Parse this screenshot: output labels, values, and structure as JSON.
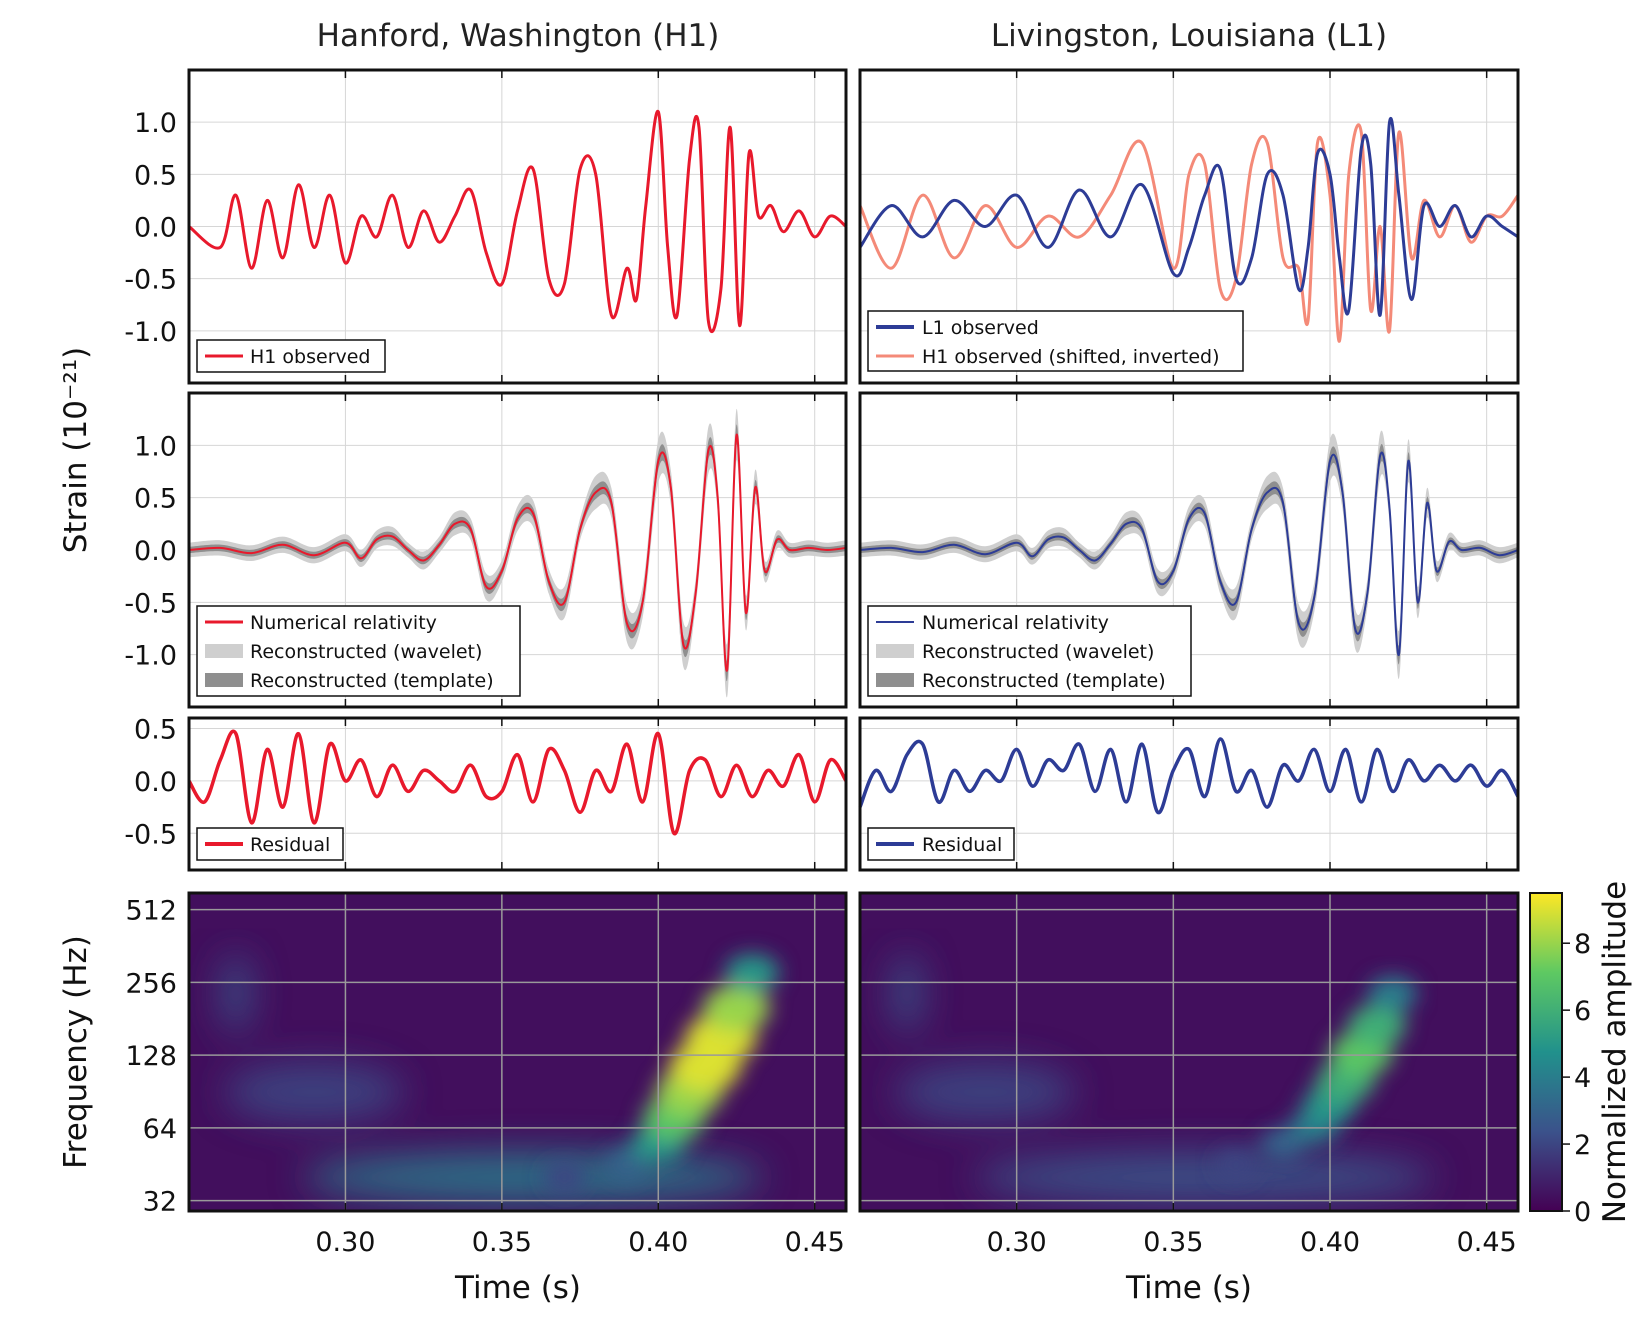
{
  "chart_data": [
    {
      "id": "h1-observed",
      "type": "line",
      "title": "Hanford, Washington (H1)",
      "ylabel": "Strain (10⁻²¹)",
      "xlim": [
        0.25,
        0.46
      ],
      "ylim": [
        -1.5,
        1.5
      ],
      "ytick_labels": [
        "1.0",
        "0.5",
        "0.0",
        "-0.5",
        "-1.0"
      ],
      "yticks": [
        1.0,
        0.5,
        0.0,
        -0.5,
        -1.0
      ],
      "legend": "bottom-left",
      "series": [
        {
          "name": "H1 observed",
          "color": "#e8192c",
          "x": [
            0.25,
            0.26,
            0.265,
            0.27,
            0.275,
            0.28,
            0.285,
            0.29,
            0.295,
            0.3,
            0.305,
            0.31,
            0.315,
            0.32,
            0.325,
            0.33,
            0.335,
            0.34,
            0.345,
            0.35,
            0.355,
            0.36,
            0.365,
            0.37,
            0.375,
            0.38,
            0.385,
            0.39,
            0.393,
            0.396,
            0.4,
            0.403,
            0.406,
            0.41,
            0.413,
            0.416,
            0.42,
            0.423,
            0.426,
            0.429,
            0.432,
            0.436,
            0.44,
            0.445,
            0.45,
            0.455,
            0.46
          ],
          "y": [
            0.0,
            -0.2,
            0.3,
            -0.4,
            0.25,
            -0.3,
            0.4,
            -0.2,
            0.3,
            -0.35,
            0.1,
            -0.1,
            0.3,
            -0.2,
            0.15,
            -0.15,
            0.1,
            0.35,
            -0.25,
            -0.55,
            0.15,
            0.55,
            -0.5,
            -0.55,
            0.55,
            0.5,
            -0.85,
            -0.4,
            -0.7,
            0.2,
            1.1,
            -0.2,
            -0.85,
            0.65,
            0.95,
            -0.9,
            -0.6,
            0.95,
            -0.95,
            0.7,
            0.1,
            0.2,
            -0.05,
            0.15,
            -0.1,
            0.1,
            0.0
          ]
        }
      ]
    },
    {
      "id": "l1-observed",
      "type": "line",
      "title": "Livingston, Louisiana (L1)",
      "xlim": [
        0.25,
        0.46
      ],
      "ylim": [
        -1.5,
        1.5
      ],
      "legend": "bottom-left",
      "series": [
        {
          "name": "L1 observed",
          "color": "#2d3c96",
          "x": [
            0.25,
            0.26,
            0.27,
            0.28,
            0.29,
            0.3,
            0.31,
            0.32,
            0.33,
            0.34,
            0.35,
            0.355,
            0.36,
            0.365,
            0.37,
            0.375,
            0.38,
            0.385,
            0.39,
            0.393,
            0.396,
            0.4,
            0.403,
            0.406,
            0.41,
            0.413,
            0.416,
            0.419,
            0.422,
            0.426,
            0.43,
            0.435,
            0.44,
            0.445,
            0.45,
            0.455,
            0.46
          ],
          "y": [
            -0.2,
            0.2,
            -0.1,
            0.25,
            0.0,
            0.3,
            -0.2,
            0.35,
            -0.1,
            0.4,
            -0.45,
            -0.2,
            0.3,
            0.55,
            -0.5,
            -0.3,
            0.5,
            0.3,
            -0.6,
            -0.2,
            0.7,
            0.5,
            -0.3,
            -0.8,
            0.75,
            0.6,
            -0.85,
            1.0,
            0.3,
            -0.7,
            0.2,
            0.0,
            0.2,
            -0.1,
            0.1,
            0.0,
            -0.1
          ]
        },
        {
          "name": "H1 observed (shifted, inverted)",
          "color": "#f48a78",
          "x": [
            0.25,
            0.26,
            0.27,
            0.28,
            0.29,
            0.3,
            0.31,
            0.32,
            0.33,
            0.34,
            0.35,
            0.355,
            0.36,
            0.365,
            0.37,
            0.375,
            0.38,
            0.385,
            0.39,
            0.393,
            0.396,
            0.4,
            0.403,
            0.406,
            0.41,
            0.413,
            0.416,
            0.419,
            0.422,
            0.426,
            0.43,
            0.435,
            0.44,
            0.445,
            0.45,
            0.455,
            0.46
          ],
          "y": [
            0.2,
            -0.4,
            0.3,
            -0.3,
            0.2,
            -0.2,
            0.1,
            -0.1,
            0.3,
            0.8,
            -0.4,
            0.5,
            0.6,
            -0.6,
            -0.5,
            0.6,
            0.8,
            -0.3,
            -0.4,
            -0.9,
            0.8,
            0.3,
            -1.1,
            0.5,
            0.9,
            -0.8,
            0.0,
            -1.0,
            0.9,
            -0.3,
            0.25,
            -0.1,
            0.2,
            -0.15,
            0.1,
            0.1,
            0.3
          ]
        }
      ]
    },
    {
      "id": "h1-nr",
      "type": "line",
      "xlim": [
        0.25,
        0.46
      ],
      "ylim": [
        -1.5,
        1.5
      ],
      "ylabel": "Strain (10⁻²¹)",
      "ytick_labels": [
        "1.0",
        "0.5",
        "0.0",
        "-0.5",
        "-1.0"
      ],
      "yticks": [
        1.0,
        0.5,
        0.0,
        -0.5,
        -1.0
      ],
      "legend": "bottom-left",
      "series": [
        {
          "name": "Numerical relativity",
          "color": "#e8192c",
          "x": [
            0.25,
            0.26,
            0.27,
            0.28,
            0.29,
            0.3,
            0.305,
            0.31,
            0.315,
            0.32,
            0.325,
            0.33,
            0.335,
            0.34,
            0.345,
            0.35,
            0.355,
            0.36,
            0.365,
            0.37,
            0.375,
            0.38,
            0.385,
            0.39,
            0.395,
            0.4,
            0.404,
            0.408,
            0.412,
            0.416,
            0.419,
            0.422,
            0.425,
            0.428,
            0.431,
            0.434,
            0.438,
            0.442,
            0.448,
            0.454,
            0.46
          ],
          "y": [
            0.0,
            0.02,
            -0.03,
            0.05,
            -0.05,
            0.07,
            -0.08,
            0.1,
            0.13,
            0.0,
            -0.1,
            0.05,
            0.25,
            0.2,
            -0.35,
            -0.2,
            0.3,
            0.35,
            -0.3,
            -0.5,
            0.2,
            0.55,
            0.45,
            -0.7,
            -0.5,
            0.85,
            0.6,
            -0.9,
            -0.4,
            0.95,
            0.5,
            -1.15,
            1.1,
            -0.6,
            0.6,
            -0.2,
            0.1,
            0.0,
            0.02,
            0.0,
            0.02
          ]
        },
        {
          "name": "Reconstructed (wavelet)",
          "color": "#cfcfcf"
        },
        {
          "name": "Reconstructed (template)",
          "color": "#8f8f8f"
        }
      ]
    },
    {
      "id": "l1-nr",
      "type": "line",
      "xlim": [
        0.25,
        0.46
      ],
      "ylim": [
        -1.5,
        1.5
      ],
      "legend": "bottom-left",
      "series": [
        {
          "name": "Numerical relativity",
          "color": "#2d3c96",
          "x": [
            0.25,
            0.26,
            0.27,
            0.28,
            0.29,
            0.3,
            0.305,
            0.31,
            0.315,
            0.32,
            0.325,
            0.33,
            0.335,
            0.34,
            0.345,
            0.35,
            0.355,
            0.36,
            0.365,
            0.37,
            0.375,
            0.38,
            0.385,
            0.39,
            0.395,
            0.4,
            0.404,
            0.408,
            0.412,
            0.416,
            0.419,
            0.422,
            0.425,
            0.428,
            0.431,
            0.434,
            0.438,
            0.442,
            0.448,
            0.454,
            0.46
          ],
          "y": [
            0.0,
            0.02,
            -0.02,
            0.05,
            -0.04,
            0.07,
            -0.06,
            0.1,
            0.12,
            0.0,
            -0.1,
            0.06,
            0.25,
            0.2,
            -0.3,
            -0.2,
            0.3,
            0.35,
            -0.3,
            -0.5,
            0.2,
            0.55,
            0.45,
            -0.7,
            -0.45,
            0.85,
            0.55,
            -0.75,
            -0.4,
            0.9,
            0.4,
            -1.0,
            0.85,
            -0.5,
            0.45,
            -0.2,
            0.08,
            0.0,
            0.02,
            -0.05,
            0.0
          ]
        },
        {
          "name": "Reconstructed (wavelet)",
          "color": "#cfcfcf"
        },
        {
          "name": "Reconstructed (template)",
          "color": "#8f8f8f"
        }
      ]
    },
    {
      "id": "h1-residual",
      "type": "line",
      "xlim": [
        0.25,
        0.46
      ],
      "ylim": [
        -0.85,
        0.6
      ],
      "ytick_labels": [
        "0.5",
        "0.0",
        "-0.5"
      ],
      "yticks": [
        0.5,
        0.0,
        -0.5
      ],
      "legend": "bottom-left",
      "series": [
        {
          "name": "Residual",
          "color": "#e8192c",
          "x": [
            0.25,
            0.255,
            0.26,
            0.265,
            0.27,
            0.275,
            0.28,
            0.285,
            0.29,
            0.295,
            0.3,
            0.305,
            0.31,
            0.315,
            0.32,
            0.325,
            0.33,
            0.335,
            0.34,
            0.345,
            0.35,
            0.355,
            0.36,
            0.365,
            0.37,
            0.375,
            0.38,
            0.385,
            0.39,
            0.395,
            0.4,
            0.405,
            0.41,
            0.415,
            0.42,
            0.425,
            0.43,
            0.435,
            0.44,
            0.445,
            0.45,
            0.455,
            0.46
          ],
          "y": [
            0.0,
            -0.2,
            0.2,
            0.45,
            -0.4,
            0.3,
            -0.25,
            0.45,
            -0.4,
            0.35,
            0.0,
            0.2,
            -0.15,
            0.15,
            -0.1,
            0.1,
            0.0,
            -0.1,
            0.15,
            -0.15,
            -0.1,
            0.25,
            -0.2,
            0.3,
            0.1,
            -0.3,
            0.1,
            -0.1,
            0.35,
            -0.2,
            0.45,
            -0.5,
            0.1,
            0.2,
            -0.15,
            0.15,
            -0.15,
            0.1,
            -0.05,
            0.25,
            -0.2,
            0.2,
            0.0
          ]
        }
      ]
    },
    {
      "id": "l1-residual",
      "type": "line",
      "xlim": [
        0.25,
        0.46
      ],
      "ylim": [
        -0.85,
        0.6
      ],
      "legend": "bottom-left",
      "series": [
        {
          "name": "Residual",
          "color": "#2d3c96",
          "x": [
            0.25,
            0.255,
            0.26,
            0.265,
            0.27,
            0.275,
            0.28,
            0.285,
            0.29,
            0.295,
            0.3,
            0.305,
            0.31,
            0.315,
            0.32,
            0.325,
            0.33,
            0.335,
            0.34,
            0.345,
            0.35,
            0.355,
            0.36,
            0.365,
            0.37,
            0.375,
            0.38,
            0.385,
            0.39,
            0.395,
            0.4,
            0.405,
            0.41,
            0.415,
            0.42,
            0.425,
            0.43,
            0.435,
            0.44,
            0.445,
            0.45,
            0.455,
            0.46
          ],
          "y": [
            -0.25,
            0.1,
            -0.1,
            0.25,
            0.35,
            -0.2,
            0.1,
            -0.1,
            0.1,
            0.0,
            0.3,
            -0.05,
            0.2,
            0.1,
            0.35,
            -0.1,
            0.3,
            -0.2,
            0.35,
            -0.3,
            0.1,
            0.3,
            -0.15,
            0.4,
            -0.1,
            0.1,
            -0.25,
            0.15,
            0.0,
            0.3,
            -0.1,
            0.3,
            -0.2,
            0.3,
            -0.1,
            0.2,
            0.0,
            0.15,
            0.0,
            0.15,
            -0.05,
            0.1,
            -0.15
          ]
        }
      ]
    },
    {
      "id": "h1-spectrogram",
      "type": "heatmap",
      "xlabel": "Time (s)",
      "ylabel": "Frequency (Hz)",
      "xlim": [
        0.25,
        0.46
      ],
      "xticks": [
        0.3,
        0.35,
        0.4,
        0.45
      ],
      "xtick_labels": [
        "0.30",
        "0.35",
        "0.40",
        "0.45"
      ],
      "yscale": "log2",
      "yticks": [
        32,
        64,
        128,
        256,
        512
      ],
      "ytick_labels": [
        "32",
        "64",
        "128",
        "256",
        "512"
      ],
      "ylim": [
        29,
        600
      ],
      "track": {
        "x": [
          0.37,
          0.39,
          0.4,
          0.405,
          0.41,
          0.415,
          0.42,
          0.425,
          0.43
        ],
        "freq": [
          40,
          45,
          55,
          70,
          90,
          115,
          150,
          200,
          280
        ],
        "amplitude": [
          2,
          3,
          5,
          7,
          8,
          9,
          9,
          8,
          5
        ]
      },
      "peak_amplitude": 9
    },
    {
      "id": "l1-spectrogram",
      "type": "heatmap",
      "xlabel": "Time (s)",
      "xlim": [
        0.25,
        0.46
      ],
      "xticks": [
        0.3,
        0.35,
        0.4,
        0.45
      ],
      "xtick_labels": [
        "0.30",
        "0.35",
        "0.40",
        "0.45"
      ],
      "yscale": "log2",
      "ylim": [
        29,
        600
      ],
      "track": {
        "x": [
          0.37,
          0.385,
          0.395,
          0.4,
          0.405,
          0.41,
          0.415,
          0.42
        ],
        "freq": [
          45,
          55,
          65,
          80,
          100,
          130,
          170,
          230
        ],
        "amplitude": [
          2,
          3,
          4,
          5,
          6,
          7,
          6,
          4
        ]
      },
      "peak_amplitude": 7
    }
  ],
  "colorbar": {
    "label": "Normalized amplitude",
    "ticks": [
      0,
      2,
      4,
      6,
      8
    ],
    "tick_labels": [
      "0",
      "2",
      "4",
      "6",
      "8"
    ],
    "range": [
      0,
      9.5
    ]
  },
  "colors": {
    "h1": "#e8192c",
    "l1": "#2d3c96",
    "h1_shifted": "#f48a78",
    "wavelet": "#cfcfcf",
    "template": "#8f8f8f"
  }
}
